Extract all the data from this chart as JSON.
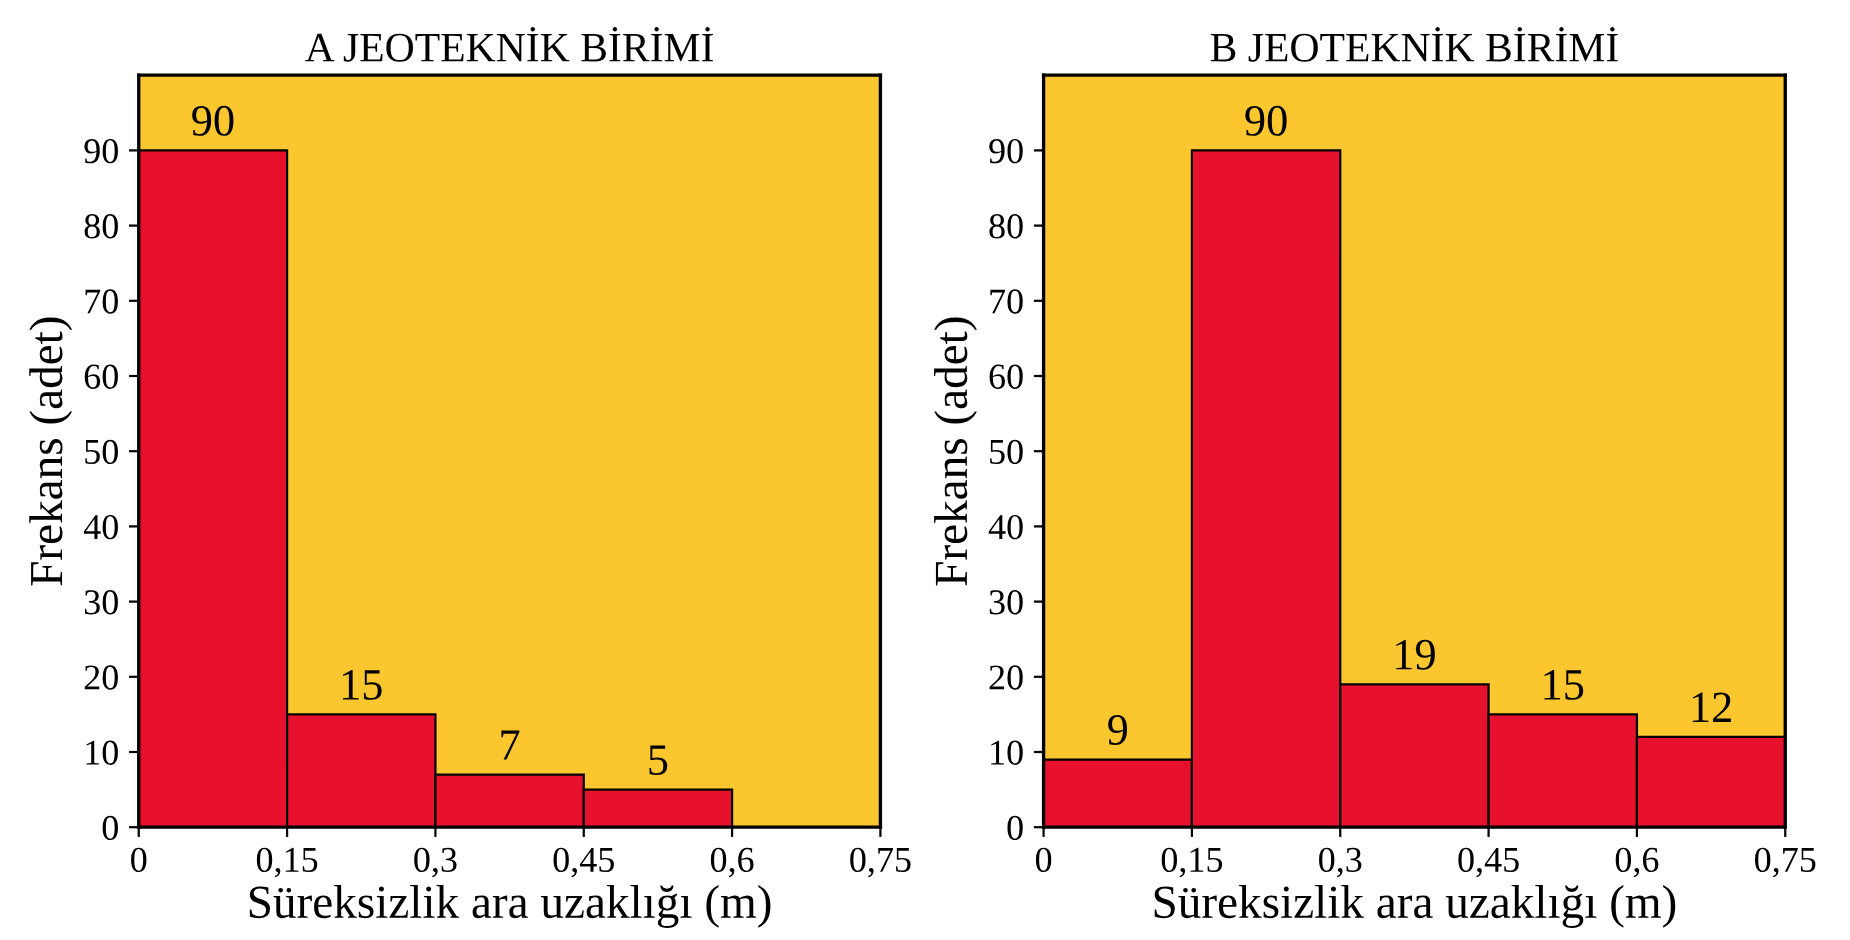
{
  "chart_data": [
    {
      "type": "histogram",
      "title": "A JEOTEKNİK BİRİMİ",
      "xlabel": "Süreksizlik ara uzaklığı (m)",
      "ylabel": "Frekans (adet)",
      "bins": [
        0,
        0.15,
        0.3,
        0.45,
        0.6
      ],
      "values": [
        90,
        15,
        7,
        5
      ],
      "color": "#e8112d",
      "data_labels": true,
      "xlim": [
        0,
        0.75
      ],
      "ylim": [
        0,
        100
      ],
      "xticks": [
        0,
        {
          "value": 0.15,
          "label": "0,15"
        },
        {
          "value": 0.3,
          "label": "0,3"
        },
        {
          "value": 0.45,
          "label": "0,45"
        },
        {
          "value": 0.6,
          "label": "0,6"
        },
        {
          "value": 0.75,
          "label": "0,75"
        }
      ],
      "yticks": [
        0,
        10,
        20,
        30,
        40,
        50,
        60,
        70,
        80,
        90
      ],
      "grid": false
    },
    {
      "type": "histogram",
      "title": "B JEOTEKNİK BİRİMİ",
      "xlabel": "Süreksizlik ara uzaklığı (m)",
      "ylabel": "Frekans (adet)",
      "bins": [
        0,
        0.15,
        0.3,
        0.45,
        0.6,
        0.75
      ],
      "values": [
        9,
        90,
        19,
        15,
        12
      ],
      "color": "#e8112d",
      "data_labels": true,
      "xlim": [
        0,
        0.75
      ],
      "ylim": [
        0,
        100
      ],
      "xticks": [
        0,
        {
          "value": 0.15,
          "label": "0,15"
        },
        {
          "value": 0.3,
          "label": "0,3"
        },
        {
          "value": 0.45,
          "label": "0,45"
        },
        {
          "value": 0.6,
          "label": "0,6"
        },
        {
          "value": 0.75,
          "label": "0,75"
        }
      ],
      "yticks": [
        0,
        10,
        20,
        30,
        40,
        50,
        60,
        70,
        80,
        90
      ],
      "grid": false
    }
  ]
}
